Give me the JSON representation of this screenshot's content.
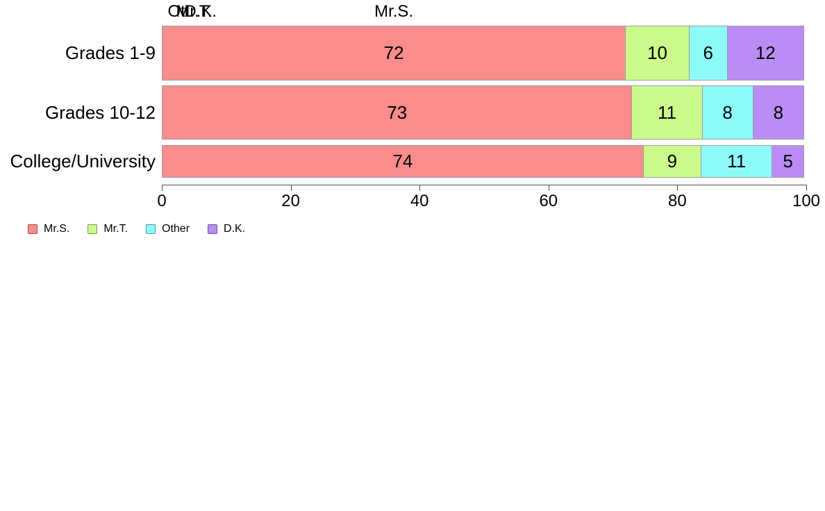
{
  "chart_data": {
    "type": "bar",
    "orientation": "horizontal",
    "stacked": true,
    "percent_scale": true,
    "categories": [
      "Grades 1-9",
      "Grades 10-12",
      "College/University"
    ],
    "series": [
      {
        "name": "Mr.S.",
        "color": "#FB8C8C",
        "values": [
          72,
          73,
          74
        ]
      },
      {
        "name": "Mr.T.",
        "color": "#CBF98C",
        "values": [
          10,
          11,
          9
        ]
      },
      {
        "name": "Other",
        "color": "#8DFAFA",
        "values": [
          6,
          8,
          11
        ]
      },
      {
        "name": "D.K.",
        "color": "#B98DF4",
        "values": [
          12,
          8,
          5
        ]
      }
    ],
    "column_headers": [
      "Mr.S.",
      "Mr.T.",
      "Ot..",
      "D.K."
    ],
    "x_ticks": [
      "0",
      "20",
      "40",
      "60",
      "80",
      "100"
    ],
    "x_tick_values": [
      0,
      20,
      40,
      60,
      80,
      100
    ],
    "xlim": [
      0,
      100
    ],
    "xlabel": "",
    "ylabel": "",
    "grid": false,
    "legend": {
      "position": "bottom-left",
      "entries": [
        {
          "label": "Mr.S.",
          "color": "#FB8C8C"
        },
        {
          "label": "Mr.T.",
          "color": "#CBF98C"
        },
        {
          "label": "Other",
          "color": "#8DFAFA"
        },
        {
          "label": "D.K.",
          "color": "#B98DF4"
        }
      ]
    },
    "styles": {
      "segment_border_color": "#9E9E9E",
      "axis_color": "#4D4D4D",
      "text_color": "#000000",
      "background": "#FFFFFF"
    }
  }
}
